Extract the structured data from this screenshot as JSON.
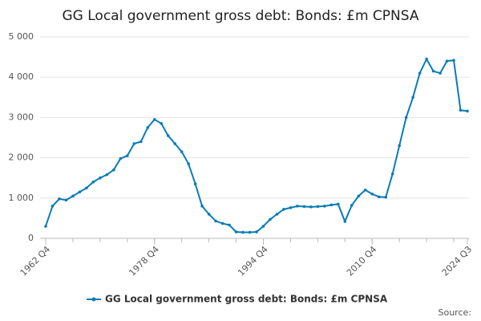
{
  "chart_data": {
    "type": "line",
    "title": "GG Local government gross debt: Bonds: £m CPNSA",
    "source": "Source:",
    "categories": [
      "1962 Q4",
      null,
      null,
      null,
      null,
      null,
      null,
      null,
      null,
      null,
      null,
      null,
      null,
      null,
      null,
      null,
      "1978 Q4",
      null,
      null,
      null,
      null,
      null,
      null,
      null,
      null,
      null,
      null,
      null,
      null,
      null,
      null,
      null,
      "1994 Q4",
      null,
      null,
      null,
      null,
      null,
      null,
      null,
      null,
      null,
      null,
      null,
      null,
      null,
      null,
      null,
      "2010 Q4",
      null,
      null,
      null,
      null,
      null,
      null,
      null,
      null,
      null,
      null,
      null,
      null,
      null,
      "2024 Q3"
    ],
    "series": [
      {
        "name": "GG Local government gross debt: Bonds: £m CPNSA",
        "color": "#0a7cb5",
        "values": [
          300,
          800,
          980,
          950,
          1050,
          1150,
          1250,
          1400,
          1500,
          1580,
          1700,
          1980,
          2050,
          2350,
          2400,
          2750,
          2950,
          2850,
          2550,
          2350,
          2150,
          1850,
          1350,
          800,
          600,
          430,
          370,
          330,
          160,
          150,
          150,
          160,
          300,
          470,
          600,
          720,
          760,
          800,
          790,
          780,
          790,
          800,
          830,
          850,
          420,
          820,
          1050,
          1200,
          1100,
          1030,
          1020,
          1600,
          2300,
          3000,
          3500,
          4100,
          4450,
          4150,
          4100,
          4400,
          4420,
          3180,
          3160
        ]
      }
    ],
    "ylim": [
      0,
      5000
    ],
    "yticks": [
      0,
      {
        "value": 1000,
        "label": "1 000"
      },
      {
        "value": 2000,
        "label": "2 000"
      },
      {
        "value": 3000,
        "label": "3 000"
      },
      {
        "value": 4000,
        "label": "4 000"
      },
      {
        "value": 5000,
        "label": "5 000"
      }
    ],
    "grid": true
  }
}
